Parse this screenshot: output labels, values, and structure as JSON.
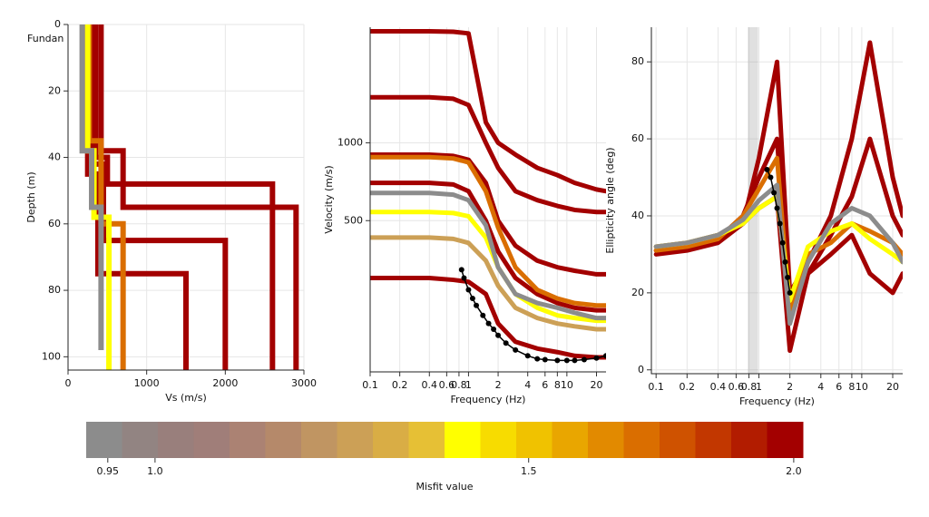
{
  "chart_data": [
    {
      "type": "profile",
      "xlabel": "Vs (m/s)",
      "ylabel": "Depth (m)",
      "annotation": "Fundan",
      "xlim": [
        0,
        3000
      ],
      "ylim": [
        104,
        0
      ],
      "xticks": [
        0,
        1000,
        2000,
        3000
      ],
      "yticks": [
        0,
        20,
        40,
        60,
        80,
        100
      ],
      "grid": true,
      "series": [
        {
          "color": "#a30000",
          "x": [
            420,
            420,
            700,
            700,
            2900,
            2900
          ],
          "y": [
            0,
            38,
            38,
            55,
            55,
            104
          ]
        },
        {
          "color": "#a30000",
          "x": [
            350,
            350,
            500,
            500,
            2600,
            2600
          ],
          "y": [
            0,
            40,
            40,
            48,
            48,
            104
          ]
        },
        {
          "color": "#a30000",
          "x": [
            300,
            300,
            450,
            450,
            2000,
            2000
          ],
          "y": [
            0,
            42,
            42,
            65,
            65,
            104
          ]
        },
        {
          "color": "#a30000",
          "x": [
            250,
            250,
            380,
            380,
            1500,
            1500
          ],
          "y": [
            0,
            45,
            45,
            75,
            75,
            104
          ]
        },
        {
          "color": "#da6e00",
          "x": [
            270,
            270,
            420,
            420,
            700,
            700
          ],
          "y": [
            0,
            35,
            35,
            60,
            60,
            104
          ]
        },
        {
          "color": "#ffff00",
          "x": [
            250,
            250,
            330,
            330,
            520,
            520
          ],
          "y": [
            0,
            38,
            38,
            58,
            58,
            104
          ]
        },
        {
          "color": "#8c8c8c",
          "x": [
            180,
            180,
            300,
            300,
            420,
            420
          ],
          "y": [
            0,
            38,
            38,
            55,
            55,
            98
          ]
        }
      ]
    },
    {
      "type": "line",
      "xlabel": "Frequency (Hz)",
      "ylabel": "Velocity (m/s)",
      "xlog": true,
      "ylog": true,
      "xlim": [
        0.1,
        25
      ],
      "ylim": [
        130,
        2800
      ],
      "xticks": [
        0.1,
        0.2,
        0.4,
        0.6,
        0.8,
        1,
        2,
        4,
        6,
        8,
        10,
        20
      ],
      "yticks": [
        500,
        1000
      ],
      "grid": true,
      "x": [
        0.1,
        0.2,
        0.4,
        0.7,
        1,
        1.5,
        2,
        3,
        5,
        8,
        12,
        20,
        25
      ],
      "series": [
        {
          "color": "#a30000",
          "values": [
            2700,
            2700,
            2700,
            2690,
            2650,
            1200,
            1000,
            900,
            800,
            750,
            700,
            660,
            650
          ]
        },
        {
          "color": "#a30000",
          "values": [
            1500,
            1500,
            1500,
            1480,
            1400,
            1000,
            800,
            650,
            600,
            570,
            550,
            540,
            540
          ]
        },
        {
          "color": "#a30000",
          "values": [
            900,
            900,
            900,
            890,
            860,
            700,
            500,
            400,
            350,
            330,
            320,
            310,
            310
          ]
        },
        {
          "color": "#a30000",
          "values": [
            700,
            700,
            700,
            690,
            650,
            500,
            380,
            300,
            260,
            240,
            230,
            225,
            225
          ]
        },
        {
          "color": "#a30000",
          "values": [
            300,
            300,
            300,
            295,
            290,
            260,
            200,
            170,
            160,
            155,
            150,
            148,
            148
          ]
        },
        {
          "color": "#da6e00",
          "values": [
            880,
            880,
            880,
            870,
            840,
            650,
            470,
            330,
            270,
            250,
            240,
            235,
            235
          ]
        },
        {
          "color": "#cca056",
          "values": [
            430,
            430,
            430,
            425,
            410,
            350,
            280,
            230,
            210,
            200,
            195,
            190,
            190
          ]
        },
        {
          "color": "#ffff00",
          "values": [
            540,
            540,
            540,
            535,
            520,
            430,
            330,
            260,
            230,
            215,
            210,
            205,
            205
          ]
        },
        {
          "color": "#8c8c8c",
          "values": [
            640,
            640,
            640,
            630,
            600,
            480,
            330,
            260,
            240,
            230,
            220,
            210,
            210
          ]
        },
        {
          "color": "#000000",
          "observed": true,
          "x": [
            0.85,
            0.9,
            1,
            1.1,
            1.2,
            1.4,
            1.6,
            1.8,
            2,
            2.4,
            3,
            4,
            5,
            6,
            8,
            10,
            12,
            15,
            20,
            25
          ],
          "values": [
            323,
            300,
            270,
            250,
            235,
            215,
            200,
            190,
            180,
            168,
            158,
            150,
            146,
            145,
            144,
            144,
            144,
            145,
            147,
            150
          ]
        }
      ]
    },
    {
      "type": "line",
      "xlabel": "Frequency (Hz)",
      "ylabel": "Ellipticity angle (deg)",
      "xlog": true,
      "xlim": [
        0.09,
        25
      ],
      "ylim": [
        -1,
        89
      ],
      "xticks": [
        0.1,
        0.2,
        0.4,
        0.6,
        0.8,
        1,
        2,
        4,
        6,
        8,
        10,
        20
      ],
      "yticks": [
        0,
        20,
        40,
        60,
        80
      ],
      "grid": true,
      "band": [
        0.78,
        0.98
      ],
      "x": [
        0.1,
        0.2,
        0.4,
        0.7,
        1,
        1.5,
        2,
        3,
        5,
        8,
        12,
        20,
        25
      ],
      "series": [
        {
          "color": "#a30000",
          "values": [
            30,
            31,
            33,
            38,
            55,
            80,
            20,
            28,
            40,
            60,
            85,
            50,
            40
          ]
        },
        {
          "color": "#a30000",
          "values": [
            31,
            32,
            34,
            40,
            50,
            60,
            15,
            25,
            35,
            45,
            60,
            40,
            35
          ]
        },
        {
          "color": "#a30000",
          "values": [
            32,
            33,
            35,
            38,
            42,
            45,
            5,
            25,
            30,
            35,
            25,
            20,
            25
          ]
        },
        {
          "color": "#da6e00",
          "values": [
            31,
            32,
            34,
            40,
            47,
            55,
            15,
            30,
            33,
            38,
            36,
            33,
            30
          ]
        },
        {
          "color": "#ffff00",
          "values": [
            32,
            33,
            35,
            38,
            42,
            45,
            18,
            32,
            36,
            38,
            34,
            30,
            28
          ]
        },
        {
          "color": "#8c8c8c",
          "values": [
            32,
            33,
            35,
            39,
            44,
            48,
            12,
            28,
            38,
            42,
            40,
            33,
            28
          ]
        },
        {
          "color": "#000000",
          "observed": true,
          "x": [
            1.2,
            1.3,
            1.4,
            1.5,
            1.6,
            1.7,
            1.8,
            1.9,
            2
          ],
          "values": [
            52,
            50,
            46,
            42,
            38,
            33,
            28,
            24,
            20
          ]
        }
      ]
    },
    {
      "type": "colorbar",
      "xlabel": "Misfit value",
      "xlog": true,
      "xlim": [
        0.928,
        2.02
      ],
      "xticks": [
        0.95,
        {
          "value": 1,
          "label": "1.0"
        },
        1.5,
        {
          "value": 2,
          "label": "2.0"
        }
      ],
      "colors": [
        "#8c8c8c",
        "#928482",
        "#997f7c",
        "#a07e79",
        "#ab8273",
        "#b5896a",
        "#c09562",
        "#cca056",
        "#d9ad45",
        "#e6c035",
        "#ffff00",
        "#f7dc00",
        "#f0c200",
        "#e9a600",
        "#e28a00",
        "#da6e00",
        "#cf5200",
        "#c23700",
        "#b21c00",
        "#a30000"
      ]
    }
  ]
}
